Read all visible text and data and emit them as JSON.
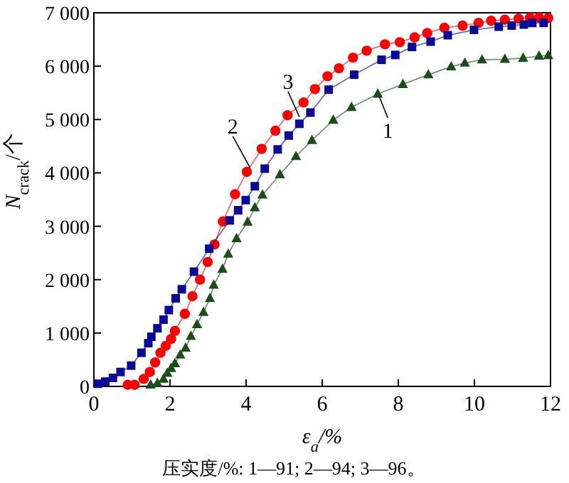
{
  "chart_data": {
    "type": "line",
    "xlabel": "ε$_{a}$/%",
    "ylabel": "*N*$_{crack}$/个",
    "xlim": [
      0,
      12
    ],
    "xticks": [
      0,
      2,
      4,
      6,
      8,
      10,
      12
    ],
    "ylim": [
      0,
      7000
    ],
    "yticks": [
      0,
      {
        "value": 1000,
        "label": "1 000"
      },
      {
        "value": 2000,
        "label": "2 000"
      },
      {
        "value": 3000,
        "label": "3 000"
      },
      {
        "value": 4000,
        "label": "4 000"
      },
      {
        "value": 5000,
        "label": "5 000"
      },
      {
        "value": 6000,
        "label": "6 000"
      },
      {
        "value": 7000,
        "label": "7 000"
      }
    ],
    "series": [
      {
        "color": "#1a4d1a",
        "marker": "triangle",
        "x": [
          1.49,
          1.67,
          1.83,
          1.93,
          2.03,
          2.13,
          2.27,
          2.41,
          2.55,
          2.71,
          2.88,
          3.05,
          3.15,
          3.38,
          3.53,
          3.75,
          4.04,
          4.23,
          4.43,
          4.89,
          5.31,
          5.73,
          6.29,
          6.77,
          7.46,
          8.12,
          8.79,
          9.39,
          9.75,
          10.2,
          10.8,
          11.28,
          11.7,
          11.94
        ],
        "values": [
          30,
          60,
          140,
          250,
          340,
          430,
          590,
          720,
          940,
          1160,
          1390,
          1650,
          1900,
          2200,
          2480,
          2770,
          3080,
          3350,
          3590,
          3970,
          4310,
          4610,
          4990,
          5230,
          5480,
          5660,
          5840,
          5990,
          6060,
          6120,
          6130,
          6150,
          6190,
          6200
        ]
      },
      {
        "color": "#ff0000",
        "marker": "circle",
        "x": [
          0.89,
          1.07,
          1.31,
          1.47,
          1.61,
          1.75,
          1.89,
          2.03,
          2.13,
          2.39,
          2.59,
          2.79,
          2.99,
          3.17,
          3.39,
          3.71,
          4.02,
          4.41,
          4.77,
          5.09,
          5.51,
          5.81,
          6.14,
          6.44,
          6.81,
          7.17,
          7.65,
          8.04,
          8.43,
          8.76,
          9.21,
          9.69,
          10.11,
          10.44,
          10.8,
          11.16,
          11.46,
          11.7,
          11.94
        ],
        "values": [
          30,
          30,
          140,
          270,
          450,
          630,
          760,
          890,
          1040,
          1360,
          1690,
          2000,
          2330,
          2660,
          3090,
          3600,
          4020,
          4450,
          4790,
          5080,
          5320,
          5570,
          5810,
          5960,
          6160,
          6290,
          6410,
          6450,
          6540,
          6620,
          6720,
          6760,
          6810,
          6850,
          6870,
          6890,
          6910,
          6910,
          6900
        ]
      },
      {
        "color": "#0a0a96",
        "marker": "square",
        "x": [
          0.1,
          0.3,
          0.5,
          0.7,
          0.98,
          1.25,
          1.43,
          1.51,
          1.67,
          1.83,
          1.97,
          2.15,
          2.31,
          2.63,
          3.03,
          3.57,
          3.79,
          3.99,
          4.23,
          4.49,
          4.83,
          5.12,
          5.4,
          5.69,
          6.17,
          6.84,
          7.56,
          7.92,
          8.36,
          8.85,
          9.3,
          9.99,
          10.64,
          10.98,
          11.3,
          11.52,
          11.82
        ],
        "values": [
          50,
          90,
          160,
          270,
          390,
          630,
          810,
          930,
          1090,
          1250,
          1430,
          1650,
          1820,
          2150,
          2580,
          3110,
          3300,
          3490,
          3750,
          4080,
          4440,
          4700,
          4920,
          5130,
          5560,
          5840,
          6120,
          6210,
          6360,
          6460,
          6580,
          6680,
          6740,
          6760,
          6780,
          6810,
          6810
        ]
      }
    ],
    "annotations": [
      {
        "text": "1",
        "x": 7.5,
        "y": 5430
      },
      {
        "text": "2",
        "x": 4.1,
        "y": 4100
      },
      {
        "text": "3",
        "x": 5.4,
        "y": 5050
      },
      "压实度/%: 1—91; 2—94; 3—96。"
    ]
  }
}
